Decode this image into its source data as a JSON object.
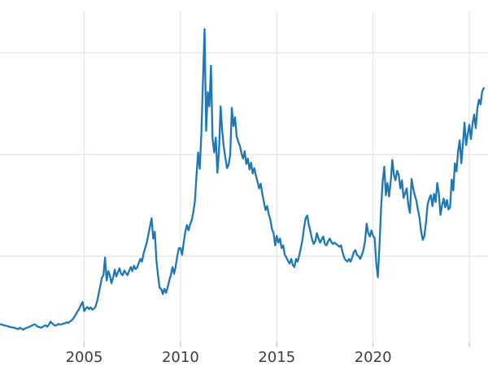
{
  "chart_data": {
    "type": "line",
    "title": "",
    "xlabel": "",
    "ylabel": "",
    "legend": "none",
    "grid_on": true,
    "y_axis_labels_visible": false,
    "x_ticks": [
      {
        "year": 2005,
        "label": "2005"
      },
      {
        "year": 2010,
        "label": "2010"
      },
      {
        "year": 2015,
        "label": "2015"
      },
      {
        "year": 2020,
        "label": "2020"
      },
      {
        "year": 2025,
        "label": ""
      }
    ],
    "x_range_years": [
      2000.628,
      2025.97
    ],
    "y_range": [
      2.4,
      51.12
    ],
    "y_gridline_values": [
      15,
      30,
      45
    ],
    "series": [
      {
        "start_year": 2000.667,
        "step_years": 0.0833333,
        "values": [
          4.95,
          4.9,
          4.8,
          4.75,
          4.7,
          4.6,
          4.55,
          4.5,
          4.45,
          4.4,
          4.3,
          4.25,
          4.45,
          4.3,
          4.15,
          4.35,
          4.4,
          4.5,
          4.6,
          4.7,
          4.85,
          4.95,
          4.8,
          4.6,
          4.55,
          4.45,
          4.55,
          4.7,
          4.8,
          4.6,
          4.9,
          5.35,
          5.1,
          4.9,
          4.75,
          4.85,
          5.0,
          4.9,
          4.95,
          5.05,
          5.1,
          5.25,
          5.15,
          5.35,
          5.5,
          5.75,
          6.1,
          6.5,
          6.9,
          7.3,
          7.8,
          8.25,
          6.9,
          7.3,
          7.5,
          7.2,
          7.45,
          7.1,
          7.25,
          7.5,
          8.3,
          9.4,
          10.6,
          11.8,
          12.2,
          14.8,
          11.4,
          12.8,
          12.2,
          11.0,
          11.8,
          13.0,
          12.0,
          12.6,
          13.2,
          12.4,
          12.2,
          12.9,
          12.5,
          12.2,
          12.8,
          13.4,
          12.8,
          13.6,
          13.1,
          13.3,
          14.0,
          14.6,
          14.2,
          15.4,
          16.2,
          17.0,
          18.2,
          19.4,
          20.6,
          17.6,
          18.6,
          14.4,
          12.2,
          10.3,
          10.2,
          9.4,
          10.2,
          9.6,
          10.4,
          11.4,
          12.2,
          13.4,
          12.4,
          13.5,
          15.0,
          16.2,
          16.2,
          15.2,
          17.0,
          18.6,
          19.6,
          18.8,
          19.7,
          20.3,
          21.5,
          23.1,
          27.0,
          30.3,
          27.9,
          33.0,
          40.8,
          48.5,
          33.5,
          39.2,
          37.1,
          43.1,
          32.3,
          30.3,
          32.5,
          27.3,
          30.5,
          37.1,
          33.5,
          31.1,
          29.5,
          28.0,
          28.5,
          30.0,
          36.9,
          34.2,
          35.5,
          32.7,
          31.9,
          31.3,
          30.2,
          29.4,
          30.5,
          28.6,
          29.4,
          27.8,
          28.8,
          27.2,
          28.0,
          26.9,
          26.0,
          25.0,
          25.7,
          24.2,
          23.0,
          21.8,
          22.4,
          21.2,
          20.4,
          19.0,
          18.4,
          16.6,
          18.0,
          17.0,
          17.6,
          16.2,
          16.6,
          15.2,
          14.8,
          14.3,
          13.9,
          14.6,
          13.7,
          13.4,
          14.6,
          14.2,
          15.1,
          16.2,
          17.4,
          19.2,
          20.6,
          21.0,
          19.6,
          18.6,
          17.5,
          16.8,
          17.2,
          18.4,
          17.6,
          17.0,
          17.5,
          17.9,
          16.8,
          16.6,
          17.2,
          17.6,
          17.1,
          16.8,
          17.0,
          16.8,
          16.6,
          16.4,
          16.6,
          15.6,
          14.8,
          14.4,
          14.2,
          14.6,
          14.2,
          14.8,
          15.6,
          15.9,
          15.2,
          15.0,
          14.6,
          15.2,
          15.9,
          17.2,
          19.8,
          18.4,
          17.9,
          18.8,
          18.0,
          17.7,
          14.0,
          11.9,
          16.5,
          22.0,
          26.0,
          28.2,
          24.0,
          25.8,
          23.8,
          26.0,
          29.2,
          27.0,
          26.2,
          27.6,
          27.0,
          25.0,
          26.2,
          23.6,
          24.3,
          25.0,
          22.5,
          21.4,
          26.4,
          25.0,
          24.0,
          23.2,
          21.8,
          20.6,
          18.6,
          17.4,
          18.0,
          20.0,
          22.6,
          23.5,
          24.0,
          22.4,
          24.2,
          23.0,
          25.8,
          24.3,
          21.1,
          22.5,
          23.5,
          22.2,
          23.3,
          21.9,
          22.2,
          26.3,
          24.7,
          28.7,
          27.5,
          30.5,
          32.1,
          28.7,
          31.5,
          34.7,
          31.4,
          33.0,
          34.4,
          32.3,
          34.5,
          35.9,
          33.9,
          36.8,
          38.1,
          37.4,
          39.3,
          39.8
        ]
      }
    ]
  },
  "style": {
    "line_color": "#1f77b4",
    "grid_color": "#e8e8e8",
    "tick_color": "#cccccc",
    "label_color": "#3d3d3d",
    "background_color": "#ffffff"
  }
}
